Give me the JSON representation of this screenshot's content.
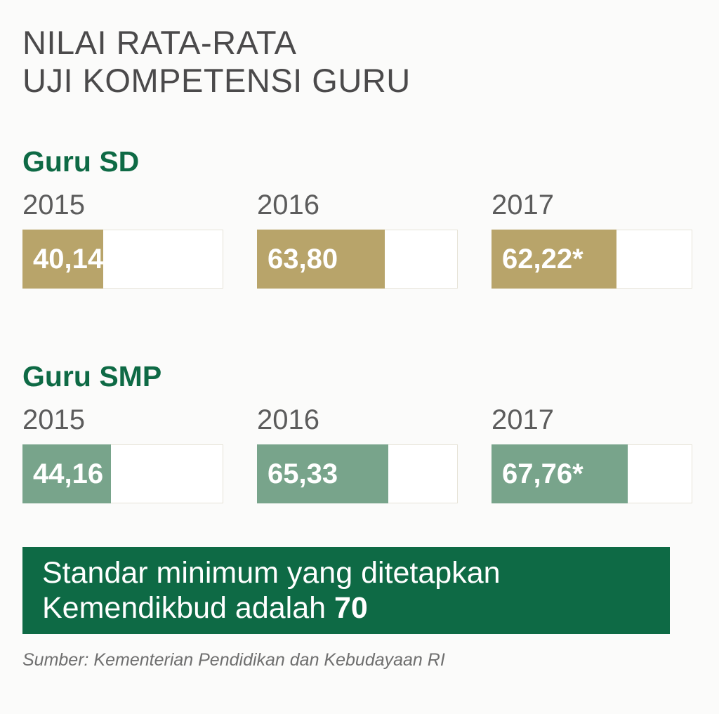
{
  "title": {
    "line1": "NILAI RATA-RATA",
    "line2": "UJI KOMPETENSI GURU"
  },
  "chart_data": [
    {
      "type": "bar",
      "title": "Guru SD",
      "categories": [
        "2015",
        "2016",
        "2017"
      ],
      "values": [
        40.14,
        63.8,
        62.22
      ],
      "labels": [
        "40,14",
        "63,80",
        "62,22*"
      ],
      "ylim": [
        0,
        100
      ],
      "color": "#b8a46a"
    },
    {
      "type": "bar",
      "title": "Guru SMP",
      "categories": [
        "2015",
        "2016",
        "2017"
      ],
      "values": [
        44.16,
        65.33,
        67.76
      ],
      "labels": [
        "44,16",
        "65,33",
        "67,76*"
      ],
      "ylim": [
        0,
        100
      ],
      "color": "#78a48b"
    }
  ],
  "note": {
    "line1": "Standar minimum yang ditetapkan",
    "line2_prefix": "Kemendikbud adalah ",
    "value": "70",
    "background": "#0e6a45"
  },
  "source": "Sumber: Kementerian Pendidikan dan Kebudayaan RI"
}
